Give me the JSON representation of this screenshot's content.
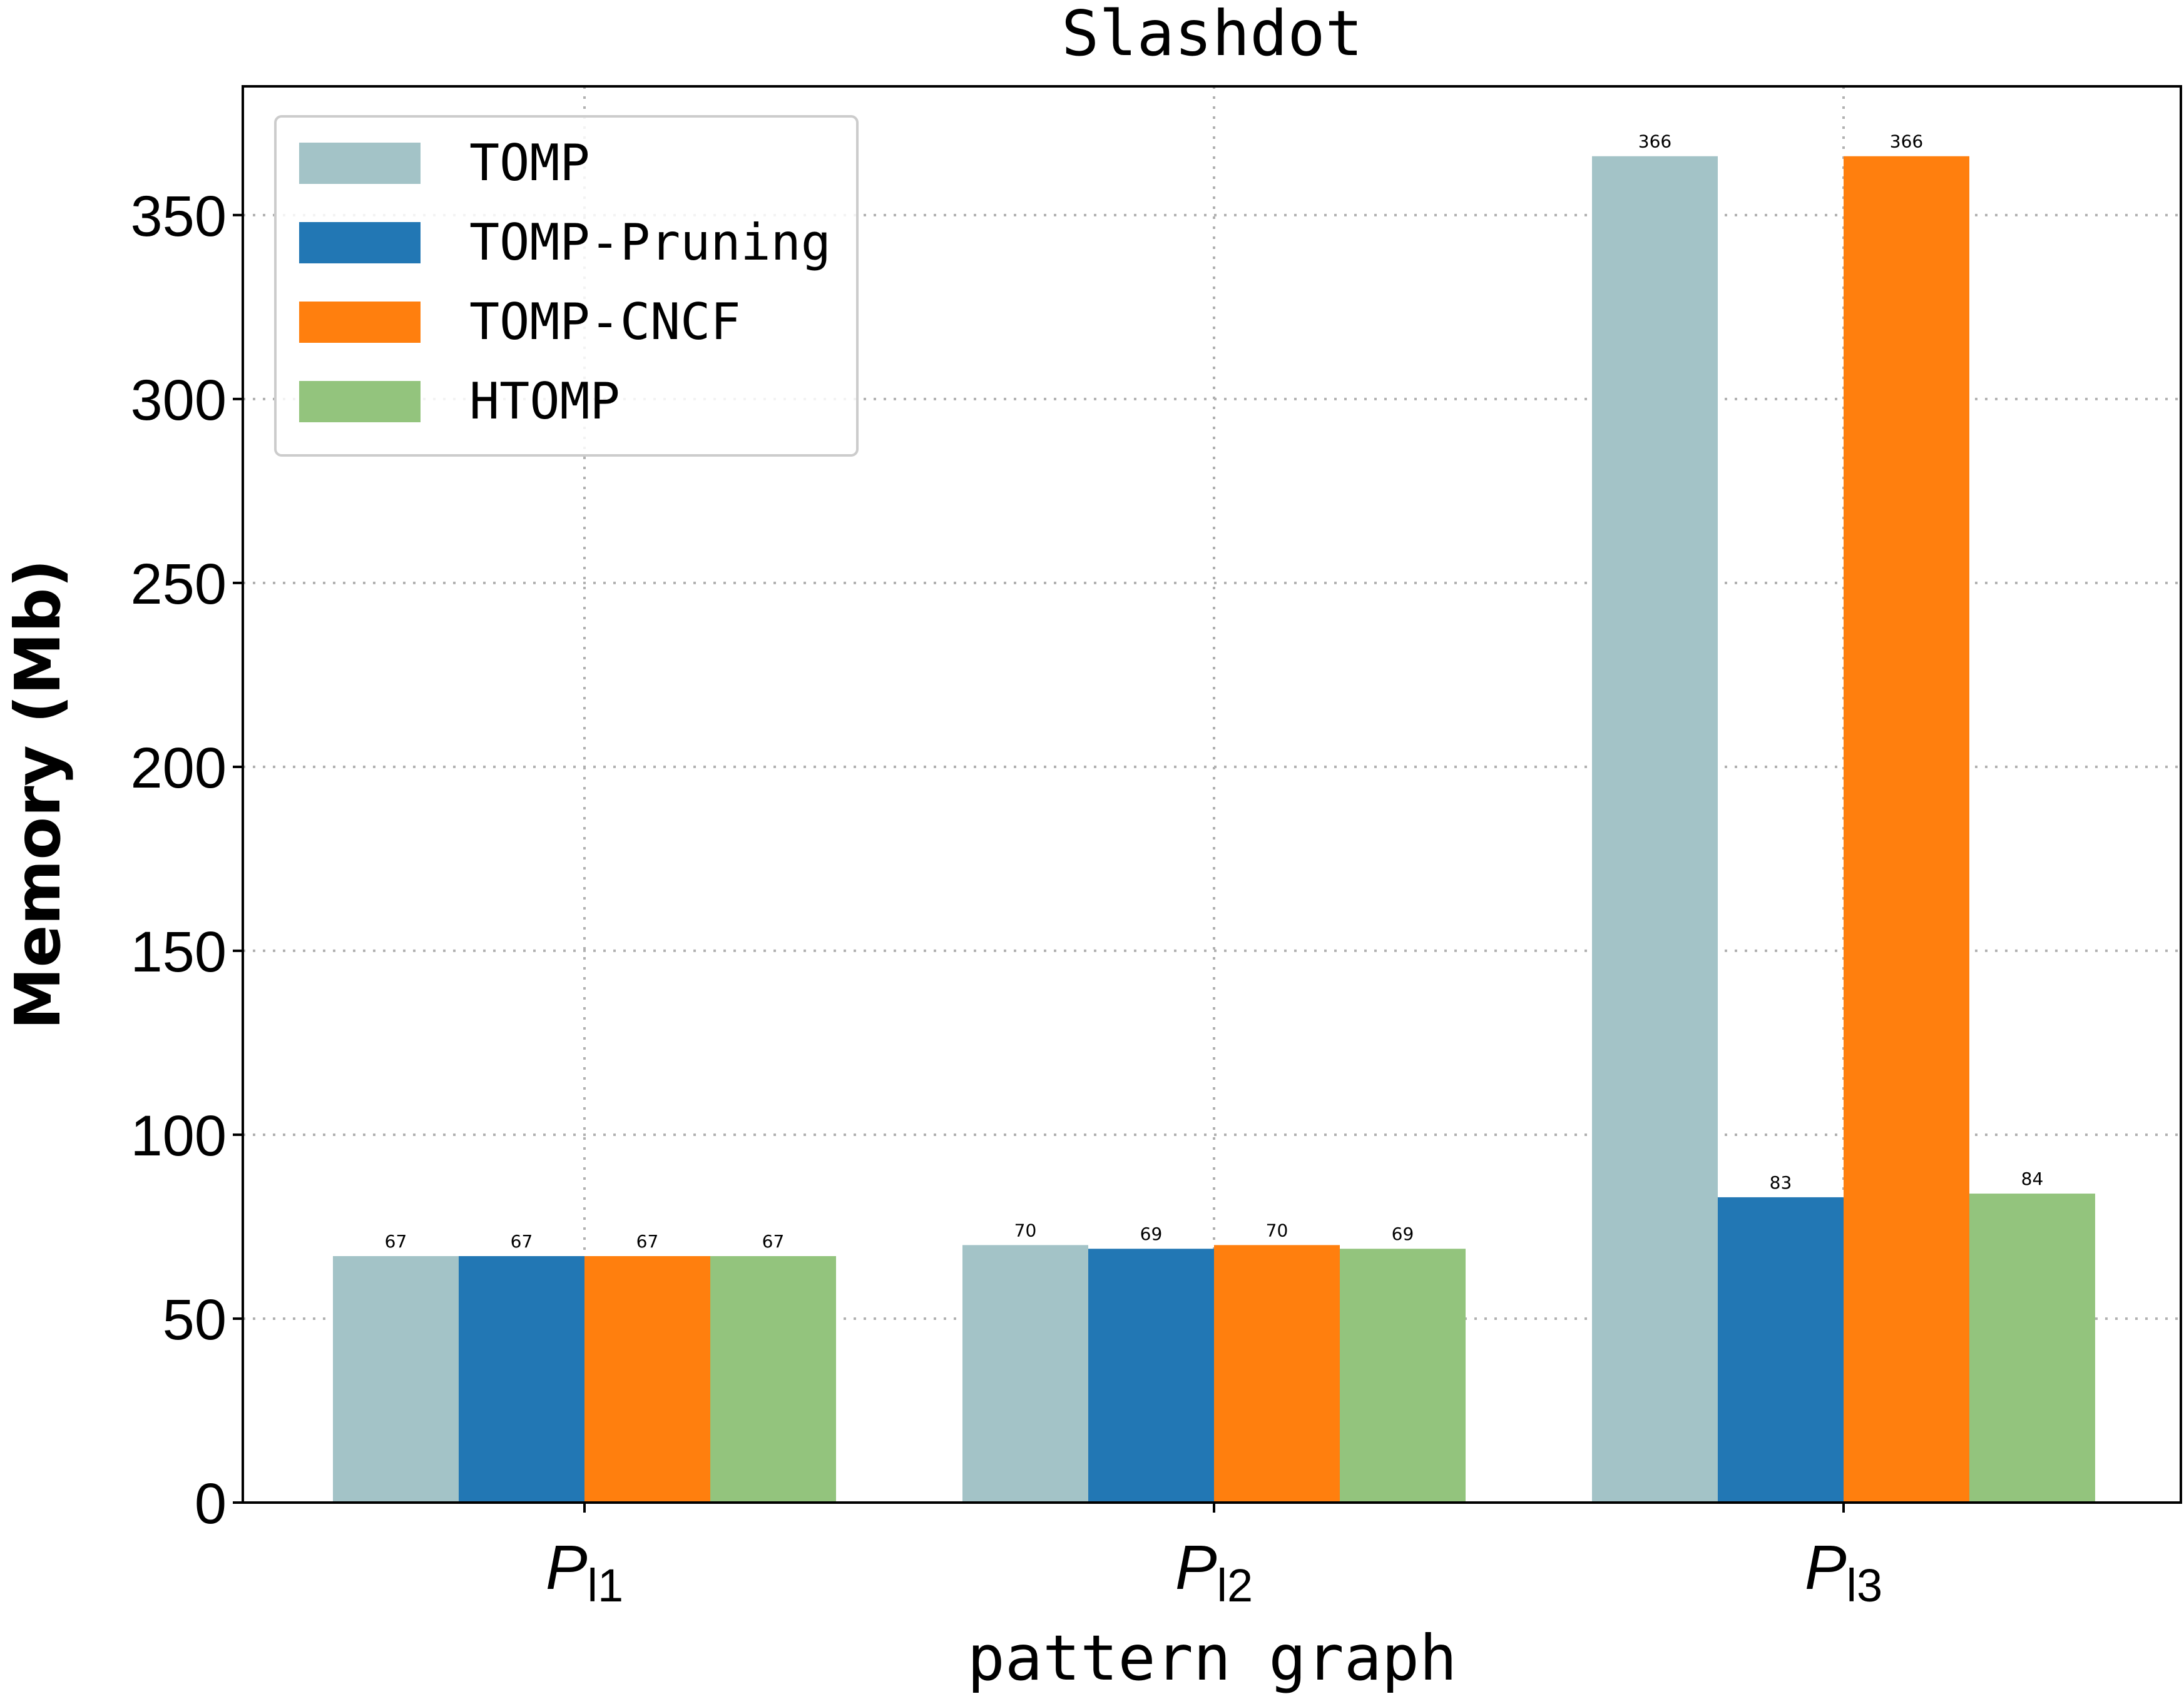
{
  "chart_data": {
    "type": "bar",
    "title": "Slashdot",
    "xlabel": "pattern graph",
    "ylabel": "Memory (Mb)",
    "categories": [
      {
        "main": "P",
        "sub": "l1"
      },
      {
        "main": "P",
        "sub": "l2"
      },
      {
        "main": "P",
        "sub": "l3"
      }
    ],
    "series": [
      {
        "name": "TOMP",
        "color": "#a3c3c7",
        "values": [
          67,
          70,
          366
        ]
      },
      {
        "name": "TOMP-Pruning",
        "color": "#2277b4",
        "values": [
          67,
          69,
          83
        ]
      },
      {
        "name": "TOMP-CNCF",
        "color": "#ff7f0e",
        "values": [
          67,
          70,
          366
        ]
      },
      {
        "name": "HTOMP",
        "color": "#93c47d",
        "values": [
          67,
          69,
          84
        ]
      }
    ],
    "ylim": [
      0,
      385
    ],
    "yticks": [
      0,
      50,
      100,
      150,
      200,
      250,
      300,
      350
    ],
    "grid": true,
    "legend_position": "top-left"
  }
}
